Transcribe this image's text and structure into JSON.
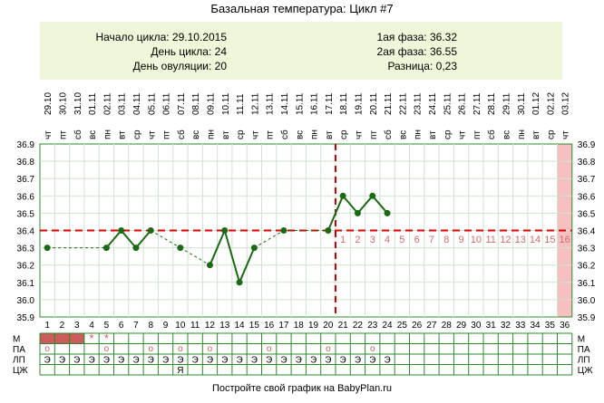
{
  "title": "Базальная температура: Цикл #7",
  "info": {
    "cycle_start": "Начало цикла: 29.10.2015",
    "cycle_day": "День цикла: 24",
    "ovulation_day": "День овуляции: 20",
    "phase1": "1ая фаза: 36.32",
    "phase2": "2ая фаза: 36.55",
    "difference": "Разница: 0,23"
  },
  "footer": "Постройте свой график на BabyPlan.ru",
  "colors": {
    "line": "#1a6a12",
    "dot": "#1a6a12",
    "coverline": "#dd0000",
    "ovulation": "#cc0000",
    "phase2_labels": "#d46a6a",
    "last_day_fill": "#f6c0c0",
    "info_bg": "#eef7d9",
    "grid_major": "#2b8a2b",
    "grid_minor": "#cfe3cf",
    "period_fill": "#cc5b5b"
  },
  "chart_data": {
    "type": "line",
    "days": [
      1,
      2,
      3,
      4,
      5,
      6,
      7,
      8,
      9,
      10,
      11,
      12,
      13,
      14,
      15,
      16,
      17,
      18,
      19,
      20,
      21,
      22,
      23,
      24,
      25,
      26,
      27,
      28,
      29,
      30,
      31,
      32,
      33,
      34,
      35,
      36
    ],
    "dates": [
      "29.10",
      "30.10",
      "31.10",
      "01.11",
      "02.11",
      "03.11",
      "04.11",
      "05.11",
      "06.11",
      "07.11",
      "08.11",
      "09.11",
      "10.11",
      "11.11",
      "12.11",
      "13.11",
      "14.11",
      "15.11",
      "16.11",
      "17.11",
      "18.11",
      "19.11",
      "20.11",
      "21.11",
      "22.11",
      "23.11",
      "24.11",
      "25.11",
      "26.11",
      "27.11",
      "28.11",
      "29.11",
      "30.11",
      "01.12",
      "02.12",
      "03.12"
    ],
    "weekdays": [
      "чт",
      "пт",
      "сб",
      "вс",
      "пн",
      "вт",
      "ср",
      "чт",
      "пт",
      "сб",
      "вс",
      "пн",
      "вт",
      "ср",
      "чт",
      "пт",
      "сб",
      "вс",
      "пн",
      "вт",
      "ср",
      "чт",
      "пт",
      "сб",
      "вс",
      "пн",
      "вт",
      "ср",
      "чт",
      "пт",
      "сб",
      "вс",
      "пн",
      "вт",
      "ср",
      "чт"
    ],
    "series": [
      {
        "x": [
          1,
          5,
          6,
          7,
          8,
          10,
          12,
          13,
          14,
          15,
          17,
          20,
          21,
          22,
          23,
          24
        ],
        "values": [
          36.3,
          36.3,
          36.4,
          36.3,
          36.4,
          36.3,
          36.2,
          36.4,
          36.1,
          36.3,
          36.4,
          36.4,
          36.6,
          36.5,
          36.6,
          36.5
        ]
      }
    ],
    "ylim": [
      35.9,
      36.9
    ],
    "y_ticks": [
      "35.9",
      "36.0",
      "36.1",
      "36.2",
      "36.3",
      "36.4",
      "36.5",
      "36.6",
      "36.7",
      "36.8",
      "36.9"
    ],
    "coverline": 36.4,
    "ovulation_day": 20,
    "post_ovulation_labels": [
      "1",
      "2",
      "3",
      "4",
      "5",
      "6",
      "7",
      "8",
      "9",
      "10",
      "11",
      "12",
      "13",
      "14",
      "15",
      "16"
    ],
    "rows": {
      "labels": [
        "М",
        "ПА",
        "ЛП",
        "ЦЖ"
      ],
      "period_days": [
        1,
        2,
        3
      ],
      "period_stars": [
        4,
        5
      ],
      "pa_days": [
        1,
        5,
        8,
        10,
        12,
        16,
        20,
        23
      ],
      "pa_symbol": "о",
      "lp_days": [
        1,
        2,
        3,
        4,
        5,
        6,
        7,
        8,
        9,
        10,
        11,
        12,
        13,
        14,
        15,
        16,
        17,
        18,
        19,
        20,
        21,
        22,
        23,
        24
      ],
      "lp_symbol": "Э",
      "cj_days": [
        10
      ],
      "cj_symbol": "Я",
      "star_symbol": "*"
    }
  }
}
